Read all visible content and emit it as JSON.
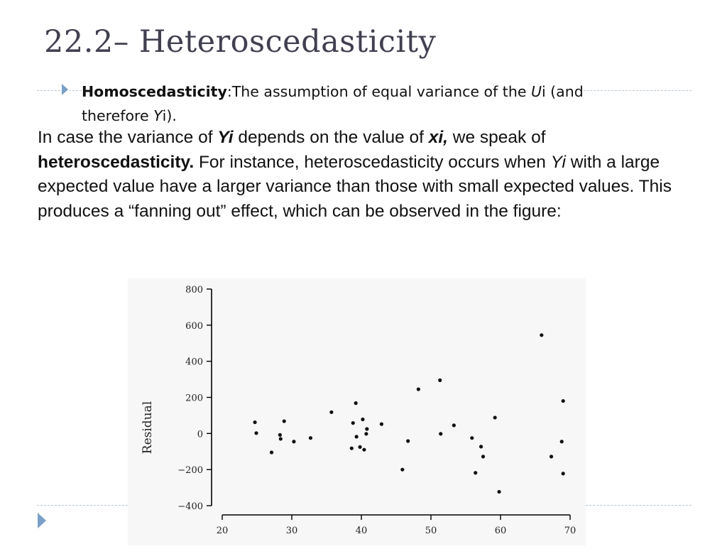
{
  "slide": {
    "title": "22.2– Heteroscedasticity",
    "bullet": {
      "term": "Homoscedasticity",
      "colon": ":",
      "text1": "The assumption of equal variance of the ",
      "u": "U",
      "text2": "i (and therefore ",
      "y": "Y",
      "text3": "i)."
    },
    "paragraph": {
      "p1": "In case the variance of ",
      "yi": "Yi",
      "p2": " depends on the value of ",
      "xi": "xi,",
      "p3": " we speak of ",
      "hetero": "heteroscedasticity.",
      "p4": " For instance, heteroscedasticity occurs when ",
      "yi2": "Yi",
      "p5": " with a large expected value have a larger variance than those with small expected values. This produces a “fanning out” effect, which can be observed in the figure:"
    }
  },
  "chart_data": {
    "type": "scatter",
    "title": "",
    "xlabel": "",
    "ylabel": "Residual",
    "xlim": [
      20,
      70
    ],
    "ylim": [
      -400,
      800
    ],
    "xticks": [
      20,
      30,
      40,
      50,
      60,
      70
    ],
    "yticks": [
      -400,
      -200,
      0,
      200,
      400,
      600,
      800
    ],
    "ytick_labels": [
      "−400",
      "−200",
      "0",
      "200",
      "400",
      "600",
      "800"
    ],
    "grid": false,
    "points": [
      [
        24.7,
        62
      ],
      [
        24.9,
        2
      ],
      [
        27.1,
        -105
      ],
      [
        28.3,
        -8
      ],
      [
        28.4,
        -30
      ],
      [
        28.9,
        68
      ],
      [
        30.3,
        -45
      ],
      [
        32.7,
        -25
      ],
      [
        35.7,
        118
      ],
      [
        38.6,
        -82
      ],
      [
        38.8,
        58
      ],
      [
        39.2,
        168
      ],
      [
        39.3,
        -18
      ],
      [
        39.8,
        -75
      ],
      [
        40.2,
        78
      ],
      [
        40.4,
        -90
      ],
      [
        40.7,
        -2
      ],
      [
        40.8,
        25
      ],
      [
        42.9,
        52
      ],
      [
        45.9,
        -200
      ],
      [
        46.7,
        -42
      ],
      [
        48.2,
        245
      ],
      [
        51.3,
        295
      ],
      [
        51.4,
        -2
      ],
      [
        53.3,
        45
      ],
      [
        55.9,
        -25
      ],
      [
        56.4,
        -218
      ],
      [
        57.2,
        -73
      ],
      [
        57.5,
        -128
      ],
      [
        59.2,
        88
      ],
      [
        59.8,
        -323
      ],
      [
        65.9,
        545
      ],
      [
        67.3,
        -128
      ],
      [
        68.8,
        -45
      ],
      [
        69.0,
        180
      ],
      [
        69.0,
        -222
      ]
    ]
  }
}
